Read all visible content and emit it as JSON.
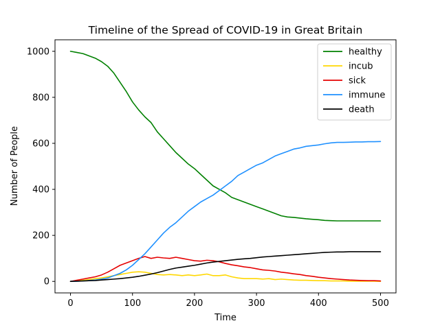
{
  "chart_data": {
    "type": "line",
    "title": "Timeline of the Spread of COVID-19 in Great Britain",
    "xlabel": "Time",
    "ylabel": "Number of People",
    "xlim": [
      -25,
      525
    ],
    "ylim": [
      -50,
      1050
    ],
    "xticks": [
      0,
      100,
      200,
      300,
      400,
      500
    ],
    "yticks": [
      0,
      200,
      400,
      600,
      800,
      1000
    ],
    "grid": false,
    "legend_position": "top-right",
    "series": [
      {
        "name": "healthy",
        "color": "#008000",
        "x": [
          0,
          10,
          20,
          30,
          40,
          50,
          60,
          70,
          80,
          90,
          100,
          110,
          120,
          130,
          140,
          150,
          160,
          170,
          180,
          190,
          200,
          210,
          220,
          230,
          240,
          250,
          260,
          270,
          280,
          290,
          300,
          310,
          320,
          330,
          340,
          350,
          360,
          370,
          380,
          390,
          400,
          410,
          420,
          430,
          440,
          450,
          460,
          470,
          480,
          490,
          500
        ],
        "y": [
          1000,
          995,
          990,
          980,
          970,
          955,
          935,
          905,
          865,
          825,
          780,
          745,
          715,
          690,
          650,
          620,
          590,
          560,
          535,
          510,
          490,
          465,
          440,
          415,
          400,
          385,
          365,
          355,
          345,
          335,
          325,
          315,
          305,
          295,
          285,
          280,
          278,
          275,
          272,
          270,
          268,
          265,
          264,
          263,
          263,
          263,
          263,
          263,
          263,
          263,
          263
        ]
      },
      {
        "name": "incub",
        "color": "#FFD700",
        "x": [
          0,
          10,
          20,
          30,
          40,
          50,
          60,
          70,
          80,
          90,
          100,
          110,
          120,
          130,
          140,
          150,
          160,
          170,
          180,
          190,
          200,
          210,
          220,
          230,
          240,
          250,
          260,
          270,
          280,
          290,
          300,
          310,
          320,
          330,
          340,
          350,
          360,
          370,
          380,
          390,
          400,
          410,
          420,
          430,
          440,
          450,
          460,
          470,
          480,
          490,
          500
        ],
        "y": [
          0,
          3,
          5,
          8,
          12,
          15,
          20,
          25,
          30,
          35,
          40,
          42,
          40,
          35,
          30,
          28,
          30,
          28,
          25,
          28,
          25,
          28,
          32,
          25,
          25,
          28,
          20,
          15,
          12,
          12,
          12,
          10,
          12,
          8,
          10,
          8,
          6,
          5,
          5,
          4,
          3,
          3,
          2,
          2,
          2,
          1,
          1,
          1,
          1,
          1,
          0
        ]
      },
      {
        "name": "sick",
        "color": "#E50000",
        "x": [
          0,
          10,
          20,
          30,
          40,
          50,
          60,
          70,
          80,
          90,
          100,
          110,
          120,
          130,
          140,
          150,
          160,
          170,
          180,
          190,
          200,
          210,
          220,
          230,
          240,
          250,
          260,
          270,
          280,
          290,
          300,
          310,
          320,
          330,
          340,
          350,
          360,
          370,
          380,
          390,
          400,
          410,
          420,
          430,
          440,
          450,
          460,
          470,
          480,
          490,
          500
        ],
        "y": [
          0,
          5,
          10,
          15,
          20,
          28,
          40,
          55,
          70,
          80,
          90,
          100,
          108,
          100,
          105,
          102,
          100,
          105,
          100,
          95,
          90,
          88,
          92,
          90,
          85,
          78,
          72,
          68,
          63,
          60,
          55,
          50,
          48,
          45,
          40,
          37,
          33,
          30,
          25,
          22,
          18,
          15,
          12,
          10,
          8,
          6,
          5,
          4,
          3,
          3,
          2
        ]
      },
      {
        "name": "immune",
        "color": "#1E90FF",
        "x": [
          0,
          10,
          20,
          30,
          40,
          50,
          60,
          70,
          80,
          90,
          100,
          110,
          120,
          130,
          140,
          150,
          160,
          170,
          180,
          190,
          200,
          210,
          220,
          230,
          240,
          250,
          260,
          270,
          280,
          290,
          300,
          310,
          320,
          330,
          340,
          350,
          360,
          370,
          380,
          390,
          400,
          410,
          420,
          430,
          440,
          450,
          460,
          470,
          480,
          490,
          500
        ],
        "y": [
          0,
          1,
          2,
          4,
          6,
          10,
          15,
          25,
          35,
          50,
          70,
          95,
          120,
          150,
          180,
          210,
          235,
          255,
          280,
          305,
          325,
          345,
          360,
          375,
          395,
          415,
          435,
          460,
          475,
          490,
          505,
          515,
          530,
          545,
          555,
          565,
          575,
          580,
          587,
          590,
          593,
          598,
          602,
          604,
          604,
          605,
          606,
          606,
          607,
          607,
          608
        ]
      },
      {
        "name": "death",
        "color": "#000000",
        "x": [
          0,
          10,
          20,
          30,
          40,
          50,
          60,
          70,
          80,
          90,
          100,
          110,
          120,
          130,
          140,
          150,
          160,
          170,
          180,
          190,
          200,
          210,
          220,
          230,
          240,
          250,
          260,
          270,
          280,
          290,
          300,
          310,
          320,
          330,
          340,
          350,
          360,
          370,
          380,
          390,
          400,
          410,
          420,
          430,
          440,
          450,
          460,
          470,
          480,
          490,
          500
        ],
        "y": [
          0,
          1,
          2,
          3,
          4,
          6,
          8,
          10,
          12,
          15,
          18,
          22,
          27,
          32,
          38,
          45,
          52,
          58,
          62,
          66,
          70,
          75,
          80,
          84,
          87,
          90,
          93,
          96,
          98,
          100,
          103,
          106,
          108,
          110,
          112,
          114,
          116,
          118,
          120,
          122,
          124,
          126,
          127,
          128,
          128,
          129,
          129,
          129,
          129,
          129,
          129
        ]
      }
    ]
  }
}
